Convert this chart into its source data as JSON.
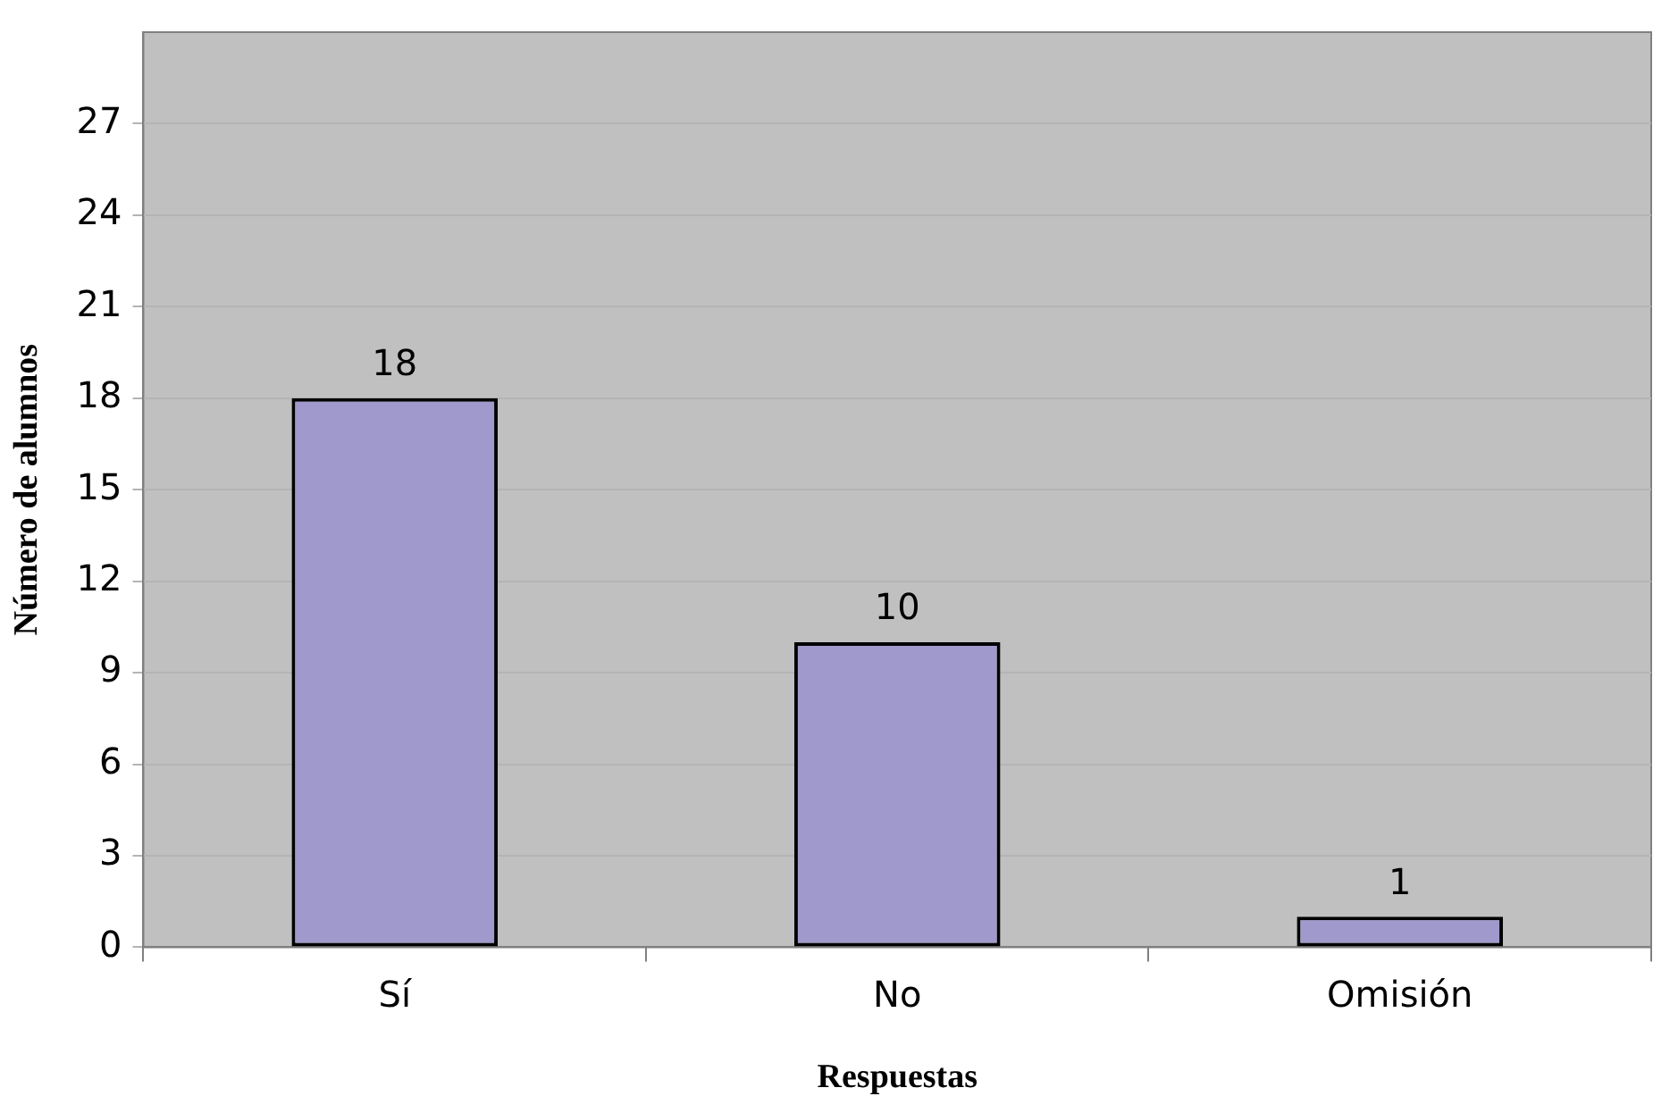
{
  "chart_data": {
    "type": "bar",
    "xlabel": "Respuestas",
    "ylabel": "Número de alumnos",
    "categories": [
      "Sí",
      "No",
      "Omisión"
    ],
    "values": [
      18,
      10,
      1
    ],
    "color": "#9f99cc",
    "ylim": [
      0,
      30
    ],
    "yticks": [
      0,
      3,
      6,
      9,
      12,
      15,
      18,
      21,
      24,
      27
    ],
    "grid": "y",
    "data_labels": true,
    "legend": false
  }
}
